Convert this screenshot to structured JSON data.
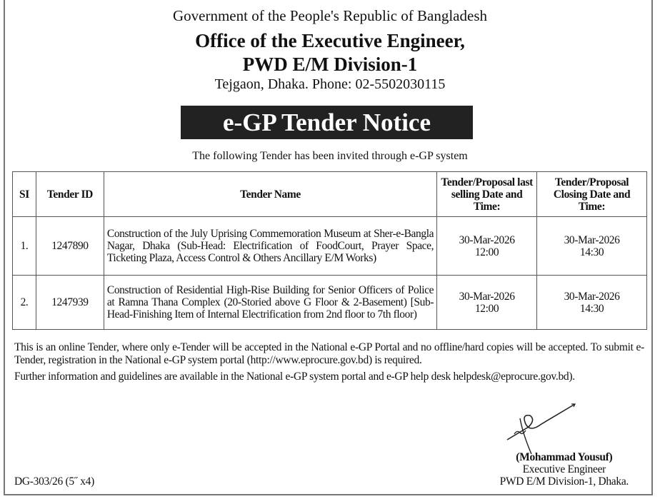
{
  "header": {
    "line1": "Government of the People's Republic of Bangladesh",
    "line2": "Office of the Executive Engineer,",
    "line3": "PWD E/M Division-1",
    "line4": "Tejgaon, Dhaka. Phone: 02-5502030115"
  },
  "banner": "e-GP Tender Notice",
  "subtitle": "The following Tender has been invited through e-GP system",
  "table": {
    "headers": [
      "SI",
      "Tender ID",
      "Tender Name",
      "Tender/Proposal last selling Date and Time:",
      "Tender/Proposal Closing Date and Time:"
    ],
    "rows": [
      {
        "si": "1.",
        "id": "1247890",
        "name": "Construction of the July Uprising Commemoration Museum at Sher-e-Bangla Nagar, Dhaka (Sub-Head: Electrification of FoodCourt, Prayer Space, Ticketing Plaza, Access Control & Others Ancillary E/M Works)",
        "sell_date": "30-Mar-2026",
        "sell_time": "12:00",
        "close_date": "30-Mar-2026",
        "close_time": "14:30"
      },
      {
        "si": "2.",
        "id": "1247939",
        "name": "Construction of Residential High-Rise Building for Senior Officers of Police at Ramna Thana Complex (20-Storied above G Floor & 2-Basement) [Sub-Head-Finishing Item of Internal Electrification from 2nd floor to 7th floor)",
        "sell_date": "30-Mar-2026",
        "sell_time": "12:00",
        "close_date": "30-Mar-2026",
        "close_time": "14:30"
      }
    ]
  },
  "paragraphs": [
    "This is an online Tender, where only e-Tender will be accepted in the National e-GP Portal and no offline/hard copies will be accepted. To submit e-Tender, registration in the National e-GP system portal (http://www.eprocure.gov.bd) is required.",
    "Further information and guidelines are available in the National e-GP system portal and e-GP help desk helpdesk@eprocure.gov.bd)."
  ],
  "signatory": {
    "name": "(Mohammad Yousuf)",
    "title": "Executive Engineer",
    "office": "PWD E/M Division-1, Dhaka."
  },
  "code": "DG-303/26 (5˝ x4)"
}
